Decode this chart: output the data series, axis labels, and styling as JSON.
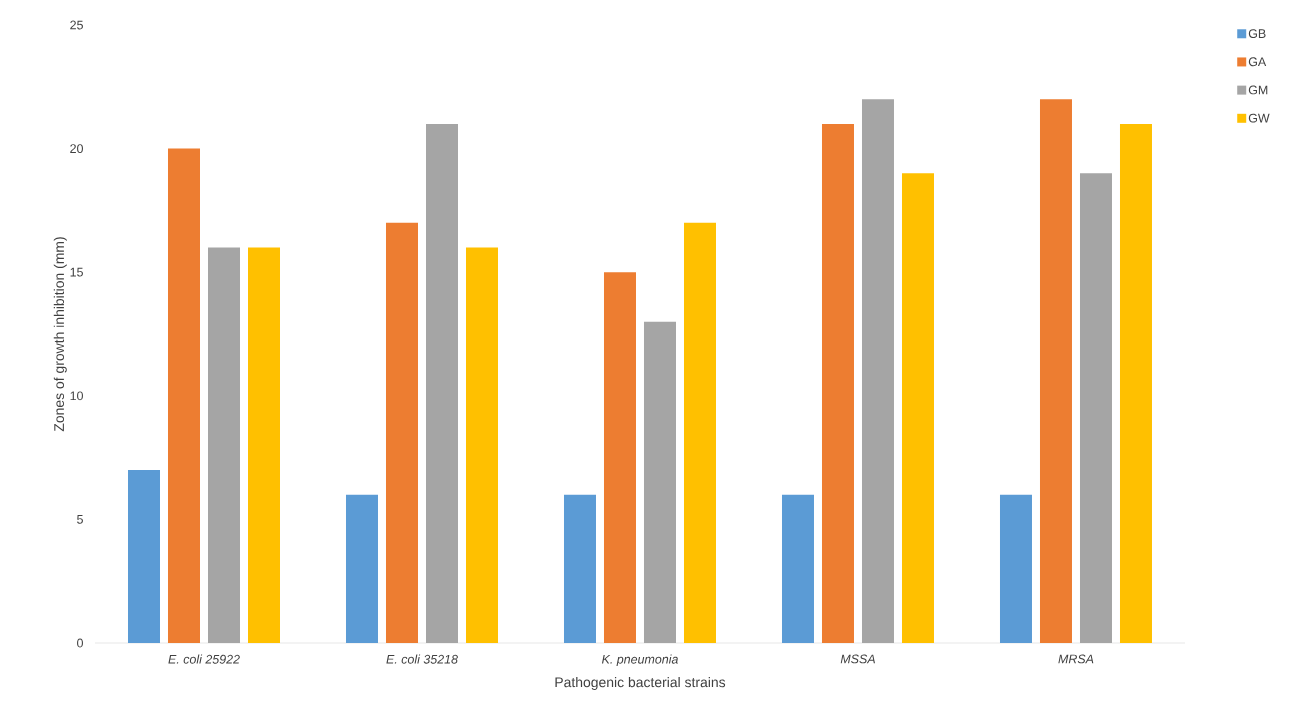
{
  "chart_data": {
    "type": "bar",
    "xlabel": "Pathogenic bacterial strains",
    "ylabel": "Zones of growth inhibition (mm)",
    "categories": [
      "E. coli 25922",
      "E. coli 35218",
      "K. pneumonia",
      "MSSA",
      "MRSA"
    ],
    "series": [
      {
        "name": "GB",
        "color": "#5b9bd5",
        "values": [
          7,
          6,
          6,
          6,
          6
        ]
      },
      {
        "name": "GA",
        "color": "#ed7d31",
        "values": [
          20,
          17,
          15,
          21,
          22
        ]
      },
      {
        "name": "GM",
        "color": "#a5a5a5",
        "values": [
          16,
          21,
          13,
          22,
          19
        ]
      },
      {
        "name": "GW",
        "color": "#ffc000",
        "values": [
          16,
          16,
          17,
          19,
          21
        ]
      }
    ],
    "ylim": [
      0,
      25
    ],
    "yticks": [
      0,
      5,
      10,
      15,
      20,
      25
    ],
    "grid": false,
    "legend": "top right"
  }
}
